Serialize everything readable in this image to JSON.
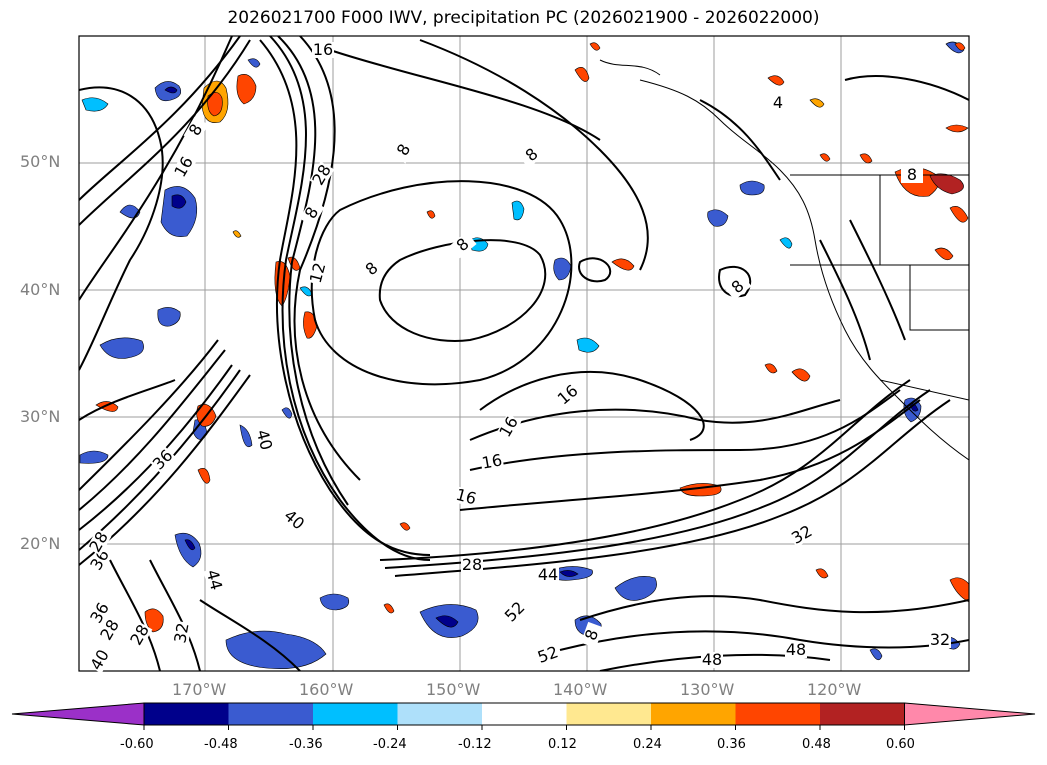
{
  "title": "2026021700 F000 IWV, precipitation PC (2026021900 - 2026022000)",
  "latitude_labels": [
    "50°N",
    "40°N",
    "30°N",
    "20°N"
  ],
  "longitude_labels": [
    "170°W",
    "160°W",
    "150°W",
    "140°W",
    "130°W",
    "120°W"
  ],
  "contour_labels": [
    "16",
    "4",
    "8",
    "8",
    "16",
    "8",
    "28",
    "8",
    "8",
    "12",
    "8",
    "8",
    "8",
    "36",
    "40",
    "16",
    "16",
    "16",
    "16",
    "40",
    "28",
    "36",
    "28",
    "44",
    "32",
    "44",
    "52",
    "52",
    "48",
    "48",
    "32",
    "28",
    "28",
    "36",
    "32",
    "40",
    "8"
  ],
  "colorbar": {
    "ticks": [
      "-0.60",
      "-0.48",
      "-0.36",
      "-0.24",
      "-0.12",
      "0.12",
      "0.24",
      "0.36",
      "0.48",
      "0.60"
    ],
    "colors": [
      "#9b30c8",
      "#00008b",
      "#3a5bd0",
      "#00bfff",
      "#aee0fa",
      "#ffffff",
      "#ffe890",
      "#ffa500",
      "#ff4500",
      "#b22222",
      "#ff88aa"
    ]
  },
  "colors": {
    "coast": "#000000",
    "grid": "#9e9e9e",
    "label": "#808080"
  }
}
